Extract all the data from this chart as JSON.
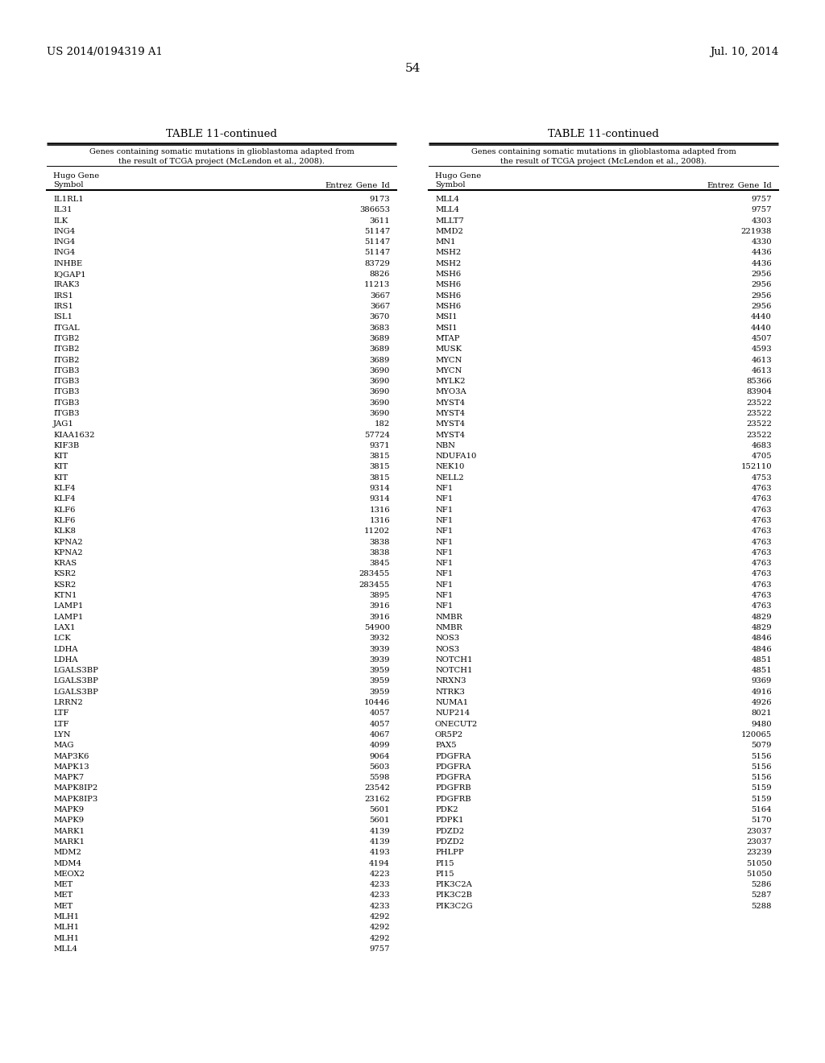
{
  "header_left": "US 2014/0194319 A1",
  "header_right": "Jul. 10, 2014",
  "page_number": "54",
  "table_title": "TABLE 11-continued",
  "table_description_1": "Genes containing somatic mutations in glioblastoma adapted from",
  "table_description_2": "the result of TCGA project (McLendon et al., 2008).",
  "col1_header_1": "Hugo Gene",
  "col1_header_2": "Symbol",
  "col2_header": "Entrez_Gene_Id",
  "left_data": [
    [
      "IL1RL1",
      "9173"
    ],
    [
      "IL31",
      "386653"
    ],
    [
      "ILK",
      "3611"
    ],
    [
      "ING4",
      "51147"
    ],
    [
      "ING4",
      "51147"
    ],
    [
      "ING4",
      "51147"
    ],
    [
      "INHBE",
      "83729"
    ],
    [
      "IQGAP1",
      "8826"
    ],
    [
      "IRAK3",
      "11213"
    ],
    [
      "IRS1",
      "3667"
    ],
    [
      "IRS1",
      "3667"
    ],
    [
      "ISL1",
      "3670"
    ],
    [
      "ITGAL",
      "3683"
    ],
    [
      "ITGB2",
      "3689"
    ],
    [
      "ITGB2",
      "3689"
    ],
    [
      "ITGB2",
      "3689"
    ],
    [
      "ITGB3",
      "3690"
    ],
    [
      "ITGB3",
      "3690"
    ],
    [
      "ITGB3",
      "3690"
    ],
    [
      "ITGB3",
      "3690"
    ],
    [
      "ITGB3",
      "3690"
    ],
    [
      "JAG1",
      "182"
    ],
    [
      "KIAA1632",
      "57724"
    ],
    [
      "KIF3B",
      "9371"
    ],
    [
      "KIT",
      "3815"
    ],
    [
      "KIT",
      "3815"
    ],
    [
      "KIT",
      "3815"
    ],
    [
      "KLF4",
      "9314"
    ],
    [
      "KLF4",
      "9314"
    ],
    [
      "KLF6",
      "1316"
    ],
    [
      "KLF6",
      "1316"
    ],
    [
      "KLK8",
      "11202"
    ],
    [
      "KPNA2",
      "3838"
    ],
    [
      "KPNA2",
      "3838"
    ],
    [
      "KRAS",
      "3845"
    ],
    [
      "KSR2",
      "283455"
    ],
    [
      "KSR2",
      "283455"
    ],
    [
      "KTN1",
      "3895"
    ],
    [
      "LAMP1",
      "3916"
    ],
    [
      "LAMP1",
      "3916"
    ],
    [
      "LAX1",
      "54900"
    ],
    [
      "LCK",
      "3932"
    ],
    [
      "LDHA",
      "3939"
    ],
    [
      "LDHA",
      "3939"
    ],
    [
      "LGALS3BP",
      "3959"
    ],
    [
      "LGALS3BP",
      "3959"
    ],
    [
      "LGALS3BP",
      "3959"
    ],
    [
      "LRRN2",
      "10446"
    ],
    [
      "LTF",
      "4057"
    ],
    [
      "LTF",
      "4057"
    ],
    [
      "LYN",
      "4067"
    ],
    [
      "MAG",
      "4099"
    ],
    [
      "MAP3K6",
      "9064"
    ],
    [
      "MAPK13",
      "5603"
    ],
    [
      "MAPK7",
      "5598"
    ],
    [
      "MAPK8IP2",
      "23542"
    ],
    [
      "MAPK8IP3",
      "23162"
    ],
    [
      "MAPK9",
      "5601"
    ],
    [
      "MAPK9",
      "5601"
    ],
    [
      "MARK1",
      "4139"
    ],
    [
      "MARK1",
      "4139"
    ],
    [
      "MDM2",
      "4193"
    ],
    [
      "MDM4",
      "4194"
    ],
    [
      "MEOX2",
      "4223"
    ],
    [
      "MET",
      "4233"
    ],
    [
      "MET",
      "4233"
    ],
    [
      "MET",
      "4233"
    ],
    [
      "MLH1",
      "4292"
    ],
    [
      "MLH1",
      "4292"
    ],
    [
      "MLH1",
      "4292"
    ],
    [
      "MLL4",
      "9757"
    ]
  ],
  "right_data": [
    [
      "MLL4",
      "9757"
    ],
    [
      "MLL4",
      "9757"
    ],
    [
      "MLLT7",
      "4303"
    ],
    [
      "MMD2",
      "221938"
    ],
    [
      "MN1",
      "4330"
    ],
    [
      "MSH2",
      "4436"
    ],
    [
      "MSH2",
      "4436"
    ],
    [
      "MSH6",
      "2956"
    ],
    [
      "MSH6",
      "2956"
    ],
    [
      "MSH6",
      "2956"
    ],
    [
      "MSH6",
      "2956"
    ],
    [
      "MSI1",
      "4440"
    ],
    [
      "MSI1",
      "4440"
    ],
    [
      "MTAP",
      "4507"
    ],
    [
      "MUSK",
      "4593"
    ],
    [
      "MYCN",
      "4613"
    ],
    [
      "MYCN",
      "4613"
    ],
    [
      "MYLK2",
      "85366"
    ],
    [
      "MYO3A",
      "83904"
    ],
    [
      "MYST4",
      "23522"
    ],
    [
      "MYST4",
      "23522"
    ],
    [
      "MYST4",
      "23522"
    ],
    [
      "MYST4",
      "23522"
    ],
    [
      "NBN",
      "4683"
    ],
    [
      "NDUFA10",
      "4705"
    ],
    [
      "NEK10",
      "152110"
    ],
    [
      "NELL2",
      "4753"
    ],
    [
      "NF1",
      "4763"
    ],
    [
      "NF1",
      "4763"
    ],
    [
      "NF1",
      "4763"
    ],
    [
      "NF1",
      "4763"
    ],
    [
      "NF1",
      "4763"
    ],
    [
      "NF1",
      "4763"
    ],
    [
      "NF1",
      "4763"
    ],
    [
      "NF1",
      "4763"
    ],
    [
      "NF1",
      "4763"
    ],
    [
      "NF1",
      "4763"
    ],
    [
      "NF1",
      "4763"
    ],
    [
      "NF1",
      "4763"
    ],
    [
      "NMBR",
      "4829"
    ],
    [
      "NMBR",
      "4829"
    ],
    [
      "NOS3",
      "4846"
    ],
    [
      "NOS3",
      "4846"
    ],
    [
      "NOTCH1",
      "4851"
    ],
    [
      "NOTCH1",
      "4851"
    ],
    [
      "NRXN3",
      "9369"
    ],
    [
      "NTRK3",
      "4916"
    ],
    [
      "NUMA1",
      "4926"
    ],
    [
      "NUP214",
      "8021"
    ],
    [
      "ONECUT2",
      "9480"
    ],
    [
      "OR5P2",
      "120065"
    ],
    [
      "PAX5",
      "5079"
    ],
    [
      "PDGFRA",
      "5156"
    ],
    [
      "PDGFRA",
      "5156"
    ],
    [
      "PDGFRA",
      "5156"
    ],
    [
      "PDGFRB",
      "5159"
    ],
    [
      "PDGFRB",
      "5159"
    ],
    [
      "PDK2",
      "5164"
    ],
    [
      "PDPK1",
      "5170"
    ],
    [
      "PDZD2",
      "23037"
    ],
    [
      "PDZD2",
      "23037"
    ],
    [
      "PHLPP",
      "23239"
    ],
    [
      "PI15",
      "51050"
    ],
    [
      "PI15",
      "51050"
    ],
    [
      "PIK3C2A",
      "5286"
    ],
    [
      "PIK3C2B",
      "5287"
    ],
    [
      "PIK3C2G",
      "5288"
    ]
  ],
  "background_color": "#ffffff",
  "text_color": "#000000"
}
